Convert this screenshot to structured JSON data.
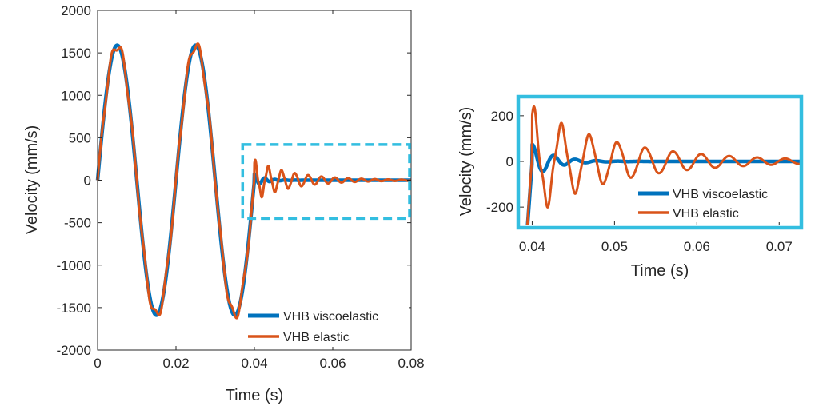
{
  "colors": {
    "viscoelastic": "#0072BD",
    "elastic": "#D95319",
    "highlight": "#33BEE0",
    "axis": "#262626"
  },
  "chart_data": [
    {
      "type": "line",
      "xlabel": "Time (s)",
      "ylabel": "Velocity (mm/s)",
      "xlim": [
        0,
        0.08
      ],
      "ylim": [
        -2000,
        2000
      ],
      "xticks": [
        0,
        0.02,
        0.04,
        0.06,
        0.08
      ],
      "xtick_labels": [
        "0",
        "0.02",
        "0.04",
        "0.06",
        "0.08"
      ],
      "yticks": [
        -2000,
        -1500,
        -1000,
        -500,
        0,
        500,
        1000,
        1500,
        2000
      ],
      "ytick_labels": [
        "-2000",
        "-1500",
        "-1000",
        "-500",
        "0",
        "500",
        "1000",
        "1500",
        "2000"
      ],
      "legend": "bottom-right",
      "highlight_box": {
        "x": [
          0.037,
          0.08
        ],
        "y": [
          -450,
          420
        ]
      },
      "series": [
        {
          "name": "VHB viscoelastic",
          "color": "#0072BD",
          "model": "viscoelastic"
        },
        {
          "name": "VHB elastic",
          "color": "#D95319",
          "model": "elastic"
        }
      ]
    },
    {
      "type": "line",
      "xlabel": "Time (s)",
      "ylabel": "Velocity (mm/s)",
      "xlim": [
        0.0385,
        0.0725
      ],
      "ylim": [
        -280,
        280
      ],
      "xticks": [
        0.04,
        0.05,
        0.06,
        0.07
      ],
      "xtick_labels": [
        "0.04",
        "0.05",
        "0.06",
        "0.07"
      ],
      "yticks": [
        -200,
        0,
        200
      ],
      "ytick_labels": [
        "-200",
        "0",
        "200"
      ],
      "legend": "bottom-right",
      "series": [
        {
          "name": "VHB viscoelastic",
          "color": "#0072BD",
          "model": "viscoelastic"
        },
        {
          "name": "VHB elastic",
          "color": "#D95319",
          "model": "elastic"
        }
      ]
    }
  ]
}
